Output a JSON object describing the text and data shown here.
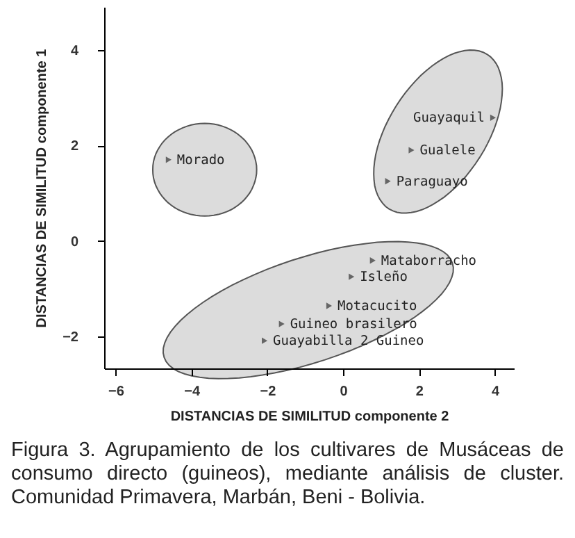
{
  "chart_data": {
    "type": "scatter",
    "xlabel": "DISTANCIAS DE SIMILITUD componente 2",
    "ylabel": "DISTANCIAS DE SIMILITUD componente 1",
    "annotations": [
      "Figura 3. Agrupamiento de los cultivares de Musáceas de consumo directo (guineos), mediante análisis de cluster. Comunidad Primavera, Marbán, Beni - Bolivia."
    ],
    "xlim": [
      -6.3,
      4.5
    ],
    "ylim": [
      -2.67,
      4.9
    ],
    "xticks": [
      -6,
      -4,
      -2,
      0,
      2,
      4
    ],
    "yticks": [
      -2,
      0,
      2,
      4
    ],
    "grid": false,
    "marker": "triangle",
    "series": [
      {
        "name": "Morado",
        "color": "#333333",
        "x": [
          -4.6
        ],
        "values": [
          1.7
        ]
      },
      {
        "name": "Guayaquil",
        "color": "#333333",
        "x": [
          3.95
        ],
        "values": [
          2.58
        ]
      },
      {
        "name": "Gualele",
        "color": "#333333",
        "x": [
          1.8
        ],
        "values": [
          1.9
        ]
      },
      {
        "name": "Paraguayo",
        "color": "#333333",
        "x": [
          1.18
        ],
        "values": [
          1.25
        ]
      },
      {
        "name": "Mataborracho",
        "color": "#333333",
        "x": [
          0.78
        ],
        "values": [
          -0.41
        ]
      },
      {
        "name": "Isleño",
        "color": "#333333",
        "x": [
          0.22
        ],
        "values": [
          -0.75
        ]
      },
      {
        "name": "Motacucito",
        "color": "#333333",
        "x": [
          -0.37
        ],
        "values": [
          -1.36
        ]
      },
      {
        "name": "Guineo brasilero",
        "color": "#333333",
        "x": [
          -1.62
        ],
        "values": [
          -1.74
        ]
      },
      {
        "name": "Guayabilla 2 Guineo",
        "color": "#333333",
        "x": [
          -2.07
        ],
        "values": [
          -2.09
        ]
      }
    ]
  }
}
